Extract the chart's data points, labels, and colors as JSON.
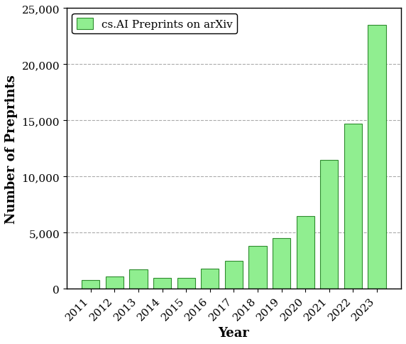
{
  "years": [
    2011,
    2012,
    2013,
    2014,
    2015,
    2016,
    2017,
    2018,
    2019,
    2020,
    2021,
    2022,
    2023
  ],
  "values": [
    800,
    1100,
    1700,
    950,
    1000,
    1800,
    2500,
    3800,
    4500,
    6500,
    11500,
    14700,
    23500
  ],
  "bar_color": "#90EE90",
  "bar_edge_color": "#2e8b2e",
  "xlabel": "Year",
  "ylabel": "Number of Preprints",
  "legend_label": "cs.AI Preprints on arXiv",
  "ylim": [
    0,
    25000
  ],
  "yticks": [
    0,
    5000,
    10000,
    15000,
    20000,
    25000
  ],
  "ytick_labels": [
    "0",
    "5,000",
    "10,000",
    "15,000",
    "20,000",
    "25,000"
  ],
  "grid_color": "#aaaaaa",
  "background_color": "#ffffff",
  "label_fontsize": 13,
  "tick_fontsize": 11,
  "legend_fontsize": 11,
  "font_family": "DejaVu Serif"
}
